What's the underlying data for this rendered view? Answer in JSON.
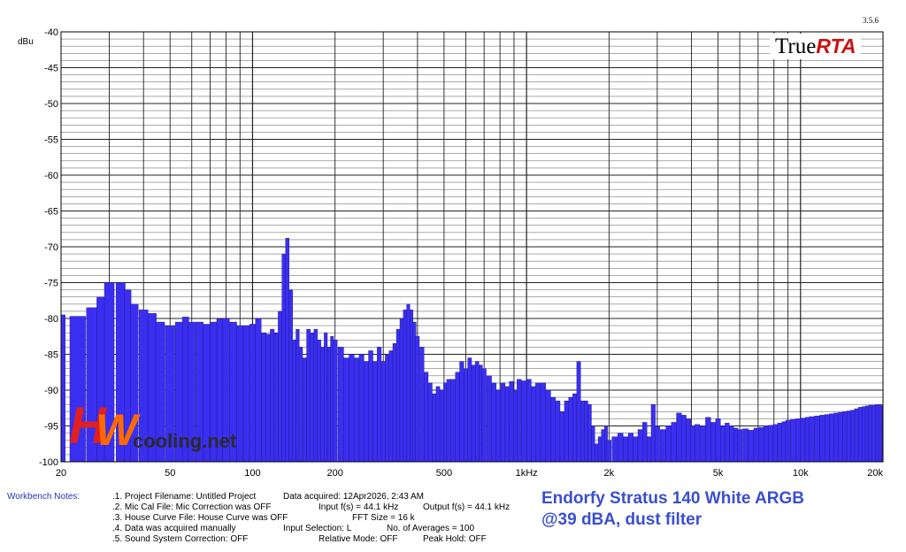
{
  "app": {
    "version": "3.5.6",
    "brand_prefix": "True",
    "brand_suffix": "RTA"
  },
  "chart_data": {
    "type": "bar",
    "ylabel": "dBu",
    "ylim": [
      -100,
      -40
    ],
    "xlim": [
      20,
      20000
    ],
    "x_scale": "log",
    "grid": true,
    "ytick_labels": [
      "-40",
      "-45",
      "-50",
      "-55",
      "-60",
      "-65",
      "-70",
      "-75",
      "-80",
      "-85",
      "-90",
      "-95",
      "-100"
    ],
    "xtick_labels": [
      {
        "v": 20,
        "label": "20"
      },
      {
        "v": 50,
        "label": "50"
      },
      {
        "v": 100,
        "label": "100"
      },
      {
        "v": 200,
        "label": "200"
      },
      {
        "v": 500,
        "label": "500"
      },
      {
        "v": 1000,
        "label": "1kHz"
      },
      {
        "v": 2000,
        "label": "2k"
      },
      {
        "v": 5000,
        "label": "5k"
      },
      {
        "v": 10000,
        "label": "10k"
      },
      {
        "v": 20000,
        "label": "20k"
      }
    ],
    "bar_color": "#3a2ff0",
    "series": [
      {
        "points": [
          [
            20,
            -79.5
          ],
          [
            23,
            -79.7
          ],
          [
            26,
            -78.5
          ],
          [
            28,
            -77
          ],
          [
            30,
            -75
          ],
          [
            33,
            -75
          ],
          [
            35,
            -76
          ],
          [
            37,
            -78
          ],
          [
            40,
            -78.8
          ],
          [
            43,
            -79.3
          ],
          [
            46,
            -80.5
          ],
          [
            50,
            -81
          ],
          [
            54,
            -80.5
          ],
          [
            57,
            -79.8
          ],
          [
            60,
            -80.5
          ],
          [
            64,
            -80.5
          ],
          [
            68,
            -80.8
          ],
          [
            72,
            -80.5
          ],
          [
            76,
            -80.1
          ],
          [
            80,
            -80
          ],
          [
            85,
            -80.5
          ],
          [
            90,
            -81
          ],
          [
            95,
            -81
          ],
          [
            100,
            -80.8
          ],
          [
            105,
            -80
          ],
          [
            110,
            -82
          ],
          [
            114,
            -82.2
          ],
          [
            118,
            -81.5
          ],
          [
            122,
            -82
          ],
          [
            126,
            -79
          ],
          [
            130,
            -71
          ],
          [
            134,
            -68.8
          ],
          [
            138,
            -76
          ],
          [
            142,
            -83
          ],
          [
            146,
            -81.5
          ],
          [
            150,
            -84
          ],
          [
            155,
            -85.5
          ],
          [
            160,
            -81.5
          ],
          [
            165,
            -82
          ],
          [
            170,
            -81.5
          ],
          [
            175,
            -83
          ],
          [
            180,
            -84
          ],
          [
            185,
            -82
          ],
          [
            190,
            -84
          ],
          [
            195,
            -82.5
          ],
          [
            200,
            -83
          ],
          [
            210,
            -84
          ],
          [
            220,
            -85.5
          ],
          [
            230,
            -85
          ],
          [
            240,
            -85.5
          ],
          [
            250,
            -85
          ],
          [
            260,
            -86
          ],
          [
            270,
            -84.5
          ],
          [
            280,
            -86
          ],
          [
            290,
            -84
          ],
          [
            300,
            -86
          ],
          [
            310,
            -85
          ],
          [
            320,
            -84.5
          ],
          [
            330,
            -83.5
          ],
          [
            340,
            -81.5
          ],
          [
            350,
            -80
          ],
          [
            360,
            -78.8
          ],
          [
            370,
            -78
          ],
          [
            380,
            -78.8
          ],
          [
            390,
            -80.5
          ],
          [
            400,
            -82.5
          ],
          [
            415,
            -84
          ],
          [
            430,
            -87.5
          ],
          [
            445,
            -89
          ],
          [
            460,
            -90.5
          ],
          [
            475,
            -89.5
          ],
          [
            490,
            -90
          ],
          [
            505,
            -89
          ],
          [
            520,
            -88.5
          ],
          [
            540,
            -88.5
          ],
          [
            560,
            -87.5
          ],
          [
            580,
            -86
          ],
          [
            600,
            -87
          ],
          [
            620,
            -85.5
          ],
          [
            640,
            -86.5
          ],
          [
            660,
            -86
          ],
          [
            680,
            -86.5
          ],
          [
            700,
            -87
          ],
          [
            730,
            -88
          ],
          [
            760,
            -89
          ],
          [
            790,
            -90
          ],
          [
            820,
            -89
          ],
          [
            850,
            -89.5
          ],
          [
            880,
            -88.8
          ],
          [
            910,
            -90
          ],
          [
            940,
            -88.5
          ],
          [
            980,
            -88.7
          ],
          [
            1020,
            -88.5
          ],
          [
            1060,
            -89.5
          ],
          [
            1100,
            -89
          ],
          [
            1150,
            -89
          ],
          [
            1200,
            -90
          ],
          [
            1250,
            -91
          ],
          [
            1300,
            -91.5
          ],
          [
            1350,
            -93
          ],
          [
            1400,
            -91.5
          ],
          [
            1450,
            -91
          ],
          [
            1500,
            -90.5
          ],
          [
            1550,
            -86
          ],
          [
            1600,
            -91.5
          ],
          [
            1650,
            -91.5
          ],
          [
            1700,
            -92
          ],
          [
            1750,
            -95
          ],
          [
            1800,
            -97.5
          ],
          [
            1850,
            -96.5
          ],
          [
            1900,
            -95.5
          ],
          [
            1950,
            -95
          ],
          [
            2000,
            -97
          ],
          [
            2100,
            -96.5
          ],
          [
            2200,
            -96
          ],
          [
            2300,
            -96.5
          ],
          [
            2400,
            -96
          ],
          [
            2500,
            -96.5
          ],
          [
            2600,
            -95.5
          ],
          [
            2700,
            -94.5
          ],
          [
            2800,
            -96.5
          ],
          [
            2900,
            -92
          ],
          [
            3000,
            -95
          ],
          [
            3150,
            -95.5
          ],
          [
            3300,
            -95
          ],
          [
            3450,
            -94.5
          ],
          [
            3600,
            -93.2
          ],
          [
            3750,
            -93.5
          ],
          [
            3900,
            -94
          ],
          [
            4050,
            -95
          ],
          [
            4200,
            -94.8
          ],
          [
            4400,
            -95
          ],
          [
            4600,
            -93.8
          ],
          [
            4800,
            -94.5
          ],
          [
            5000,
            -94
          ],
          [
            5200,
            -95
          ],
          [
            5400,
            -94.6
          ],
          [
            5600,
            -95
          ],
          [
            5800,
            -95.3
          ],
          [
            6000,
            -95.5
          ],
          [
            6300,
            -95.4
          ],
          [
            6600,
            -95.6
          ],
          [
            6900,
            -95.3
          ],
          [
            7200,
            -95.2
          ],
          [
            7500,
            -95
          ],
          [
            7800,
            -94.9
          ],
          [
            8100,
            -94.8
          ],
          [
            8400,
            -94.6
          ],
          [
            8700,
            -94.4
          ],
          [
            9000,
            -94.2
          ],
          [
            9400,
            -94.1
          ],
          [
            9800,
            -94
          ],
          [
            10200,
            -93.9
          ],
          [
            10600,
            -93.8
          ],
          [
            11000,
            -93.7
          ],
          [
            11500,
            -93.6
          ],
          [
            12000,
            -93.5
          ],
          [
            12500,
            -93.4
          ],
          [
            13000,
            -93.3
          ],
          [
            13500,
            -93.2
          ],
          [
            14000,
            -93.1
          ],
          [
            14500,
            -93
          ],
          [
            15000,
            -92.9
          ],
          [
            15500,
            -92.8
          ],
          [
            16000,
            -92.6
          ],
          [
            16500,
            -92.4
          ],
          [
            17000,
            -92.3
          ],
          [
            17500,
            -92.2
          ],
          [
            18000,
            -92.1
          ],
          [
            18500,
            -92.1
          ],
          [
            19000,
            -92
          ],
          [
            19500,
            -92
          ],
          [
            20000,
            -92.1
          ]
        ]
      }
    ]
  },
  "workbench": {
    "label": "Workbench Notes:",
    "notes": [
      ".1. Project Filename: Untitled Project",
      ".2. Mic Cal File: Mic Correction was OFF",
      ".3. House Curve File: House Curve was OFF",
      ".4. Data was acquired manually",
      ".5. Sound System Correction: OFF"
    ],
    "acquired": "Data acquired: 12Apr2026, 2:43 AM",
    "input_fs": "Input f(s) = 44.1 kHz",
    "output_fs": "Output f(s) = 44.1 kHz",
    "fft_size": "FFT Size = 16 k",
    "input_selection": "Input Selection: L",
    "averages": "No. of Averages = 100",
    "relative_mode": "Relative Mode:  OFF",
    "peak_hold": "Peak Hold: OFF"
  },
  "caption": {
    "line1": "Endorfy Stratus 140 White ARGB",
    "line2": "@39 dBA, dust filter"
  },
  "watermark": {
    "letters_h": "H",
    "letters_w": "W",
    "text": "cooling.net"
  }
}
